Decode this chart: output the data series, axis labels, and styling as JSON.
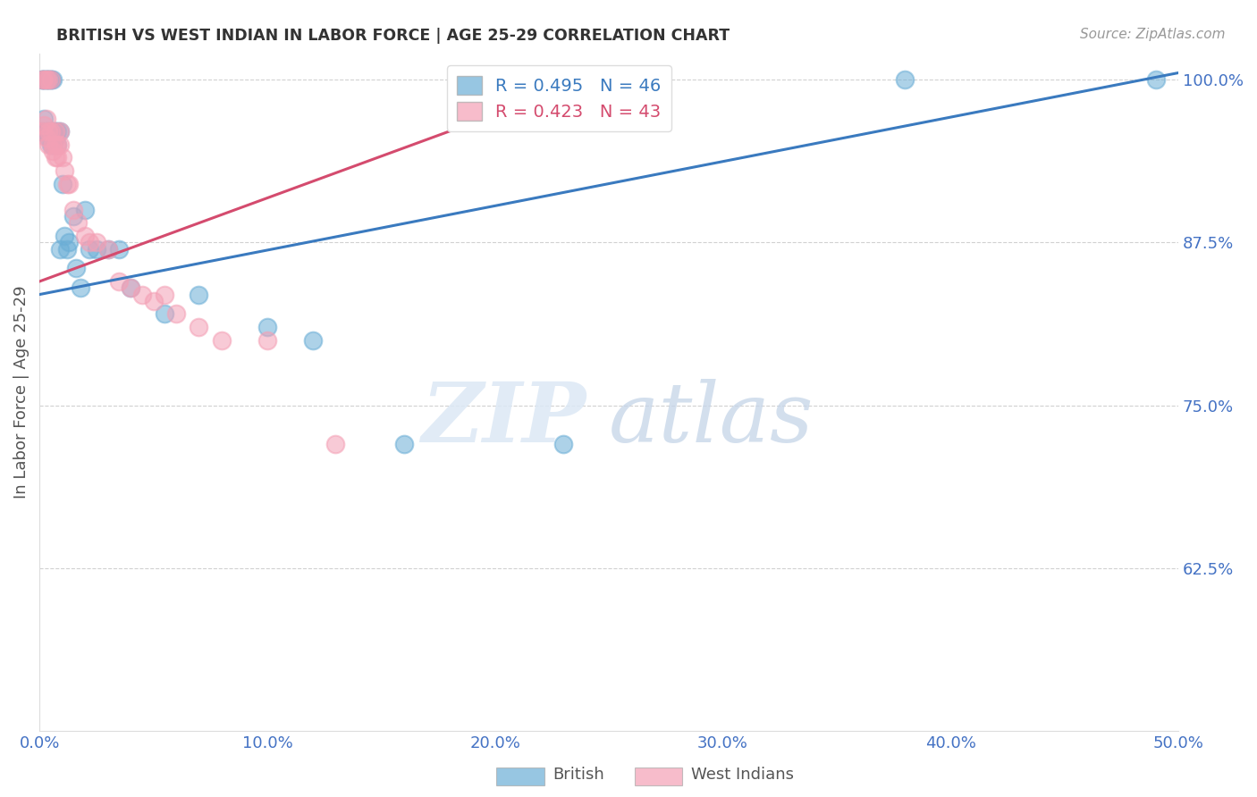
{
  "title": "BRITISH VS WEST INDIAN IN LABOR FORCE | AGE 25-29 CORRELATION CHART",
  "source": "Source: ZipAtlas.com",
  "ylabel": "In Labor Force | Age 25-29",
  "xlim": [
    0.0,
    0.5
  ],
  "ylim": [
    0.5,
    1.02
  ],
  "yticks": [
    0.625,
    0.75,
    0.875,
    1.0
  ],
  "ytick_labels": [
    "62.5%",
    "75.0%",
    "87.5%",
    "100.0%"
  ],
  "xticks": [
    0.0,
    0.1,
    0.2,
    0.3,
    0.4,
    0.5
  ],
  "xtick_labels": [
    "0.0%",
    "10.0%",
    "20.0%",
    "30.0%",
    "40.0%",
    "50.0%"
  ],
  "british_R": 0.495,
  "british_N": 46,
  "west_indian_R": 0.423,
  "west_indian_N": 43,
  "blue_color": "#6baed6",
  "pink_color": "#f4a0b5",
  "blue_line_color": "#3a7abf",
  "pink_line_color": "#d44b6e",
  "axis_color": "#4472c4",
  "blue_line_x0": 0.0,
  "blue_line_y0": 0.835,
  "blue_line_x1": 0.5,
  "blue_line_y1": 1.005,
  "pink_line_x0": 0.0,
  "pink_line_x1": 0.25,
  "pink_line_y0": 0.845,
  "pink_line_y1": 1.005,
  "british_x": [
    0.001,
    0.001,
    0.001,
    0.002,
    0.002,
    0.002,
    0.003,
    0.003,
    0.003,
    0.004,
    0.004,
    0.004,
    0.005,
    0.005,
    0.005,
    0.005,
    0.006,
    0.006,
    0.006,
    0.007,
    0.007,
    0.008,
    0.008,
    0.009,
    0.009,
    0.01,
    0.011,
    0.012,
    0.013,
    0.015,
    0.016,
    0.018,
    0.02,
    0.022,
    0.025,
    0.03,
    0.035,
    0.04,
    0.055,
    0.07,
    0.1,
    0.12,
    0.16,
    0.23,
    0.38,
    0.49
  ],
  "british_y": [
    1.0,
    1.0,
    0.96,
    1.0,
    1.0,
    0.97,
    1.0,
    1.0,
    0.96,
    1.0,
    1.0,
    0.955,
    1.0,
    1.0,
    0.96,
    0.95,
    1.0,
    0.96,
    0.95,
    0.96,
    0.955,
    0.96,
    0.95,
    0.96,
    0.87,
    0.92,
    0.88,
    0.87,
    0.875,
    0.895,
    0.855,
    0.84,
    0.9,
    0.87,
    0.87,
    0.87,
    0.87,
    0.84,
    0.82,
    0.835,
    0.81,
    0.8,
    0.72,
    0.72,
    1.0,
    1.0
  ],
  "west_indian_x": [
    0.001,
    0.001,
    0.002,
    0.002,
    0.003,
    0.003,
    0.003,
    0.004,
    0.004,
    0.004,
    0.005,
    0.005,
    0.006,
    0.006,
    0.007,
    0.007,
    0.007,
    0.008,
    0.008,
    0.009,
    0.009,
    0.01,
    0.011,
    0.012,
    0.013,
    0.015,
    0.017,
    0.02,
    0.022,
    0.025,
    0.03,
    0.035,
    0.04,
    0.045,
    0.05,
    0.055,
    0.06,
    0.07,
    0.08,
    0.1,
    0.13,
    0.22,
    0.25
  ],
  "west_indian_y": [
    1.0,
    0.96,
    1.0,
    0.965,
    1.0,
    0.97,
    0.955,
    1.0,
    0.96,
    0.95,
    1.0,
    0.96,
    0.95,
    0.945,
    0.96,
    0.95,
    0.94,
    0.95,
    0.94,
    0.96,
    0.95,
    0.94,
    0.93,
    0.92,
    0.92,
    0.9,
    0.89,
    0.88,
    0.875,
    0.875,
    0.87,
    0.845,
    0.84,
    0.835,
    0.83,
    0.835,
    0.82,
    0.81,
    0.8,
    0.8,
    0.72,
    1.0,
    1.0
  ]
}
